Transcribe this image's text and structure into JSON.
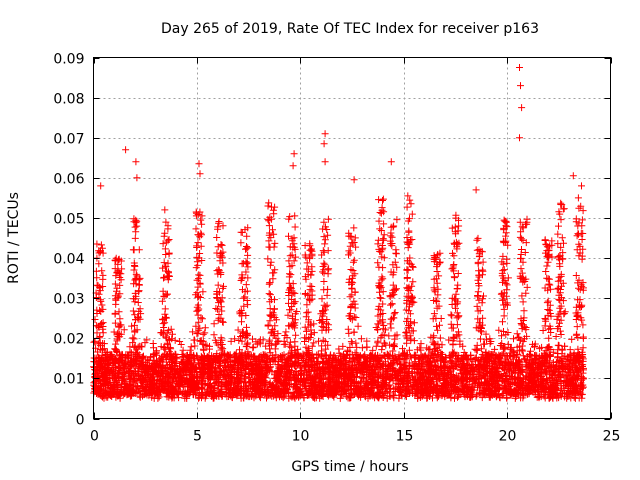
{
  "chart_data": {
    "type": "scatter",
    "title": "Day 265 of 2019, Rate Of TEC Index for receiver p163",
    "xlabel": "GPS time / hours",
    "ylabel": "ROTI / TECUs",
    "xlim": [
      0,
      25
    ],
    "ylim": [
      0,
      0.09
    ],
    "xticks": [
      0,
      5,
      10,
      15,
      20,
      25
    ],
    "xtick_labels": [
      "0",
      "5",
      "10",
      "15",
      "20",
      "25"
    ],
    "yticks": [
      0,
      0.01,
      0.02,
      0.03,
      0.04,
      0.05,
      0.06,
      0.07,
      0.08,
      0.09
    ],
    "ytick_labels": [
      "0",
      "0.01",
      "0.02",
      "0.03",
      "0.04",
      "0.05",
      "0.06",
      "0.07",
      "0.08",
      "0.09"
    ],
    "grid": true,
    "marker": "+",
    "color": "#ff0000",
    "series": [
      {
        "name": "ROTI",
        "outliers": [
          {
            "x": 0.35,
            "y": 0.058
          },
          {
            "x": 1.55,
            "y": 0.067
          },
          {
            "x": 2.05,
            "y": 0.064
          },
          {
            "x": 2.1,
            "y": 0.06
          },
          {
            "x": 3.45,
            "y": 0.052
          },
          {
            "x": 5.1,
            "y": 0.0635
          },
          {
            "x": 5.15,
            "y": 0.061
          },
          {
            "x": 9.7,
            "y": 0.066
          },
          {
            "x": 9.65,
            "y": 0.063
          },
          {
            "x": 11.2,
            "y": 0.071
          },
          {
            "x": 11.15,
            "y": 0.0685
          },
          {
            "x": 11.2,
            "y": 0.064
          },
          {
            "x": 12.6,
            "y": 0.0595
          },
          {
            "x": 14.4,
            "y": 0.064
          },
          {
            "x": 15.2,
            "y": 0.0555
          },
          {
            "x": 18.5,
            "y": 0.057
          },
          {
            "x": 20.6,
            "y": 0.0875
          },
          {
            "x": 20.65,
            "y": 0.083
          },
          {
            "x": 20.7,
            "y": 0.0775
          },
          {
            "x": 20.6,
            "y": 0.07
          },
          {
            "x": 23.2,
            "y": 0.0605
          },
          {
            "x": 23.6,
            "y": 0.058
          },
          {
            "x": 23.45,
            "y": 0.055
          }
        ],
        "envelope_peaks": [
          {
            "x": 0.3,
            "y": 0.045
          },
          {
            "x": 1.2,
            "y": 0.04
          },
          {
            "x": 2.1,
            "y": 0.05
          },
          {
            "x": 3.5,
            "y": 0.05
          },
          {
            "x": 5.1,
            "y": 0.052
          },
          {
            "x": 6.1,
            "y": 0.05
          },
          {
            "x": 7.3,
            "y": 0.048
          },
          {
            "x": 8.6,
            "y": 0.054
          },
          {
            "x": 9.6,
            "y": 0.052
          },
          {
            "x": 10.4,
            "y": 0.045
          },
          {
            "x": 11.2,
            "y": 0.05
          },
          {
            "x": 12.5,
            "y": 0.048
          },
          {
            "x": 13.9,
            "y": 0.055
          },
          {
            "x": 14.5,
            "y": 0.05
          },
          {
            "x": 15.3,
            "y": 0.055
          },
          {
            "x": 16.6,
            "y": 0.042
          },
          {
            "x": 17.5,
            "y": 0.052
          },
          {
            "x": 18.7,
            "y": 0.045
          },
          {
            "x": 19.9,
            "y": 0.052
          },
          {
            "x": 20.8,
            "y": 0.05
          },
          {
            "x": 22.0,
            "y": 0.045
          },
          {
            "x": 22.6,
            "y": 0.054
          },
          {
            "x": 23.5,
            "y": 0.055
          }
        ],
        "x_range": [
          0,
          23.7
        ],
        "baseline_typical": 0.009,
        "baseline_min": 0.003
      }
    ]
  }
}
